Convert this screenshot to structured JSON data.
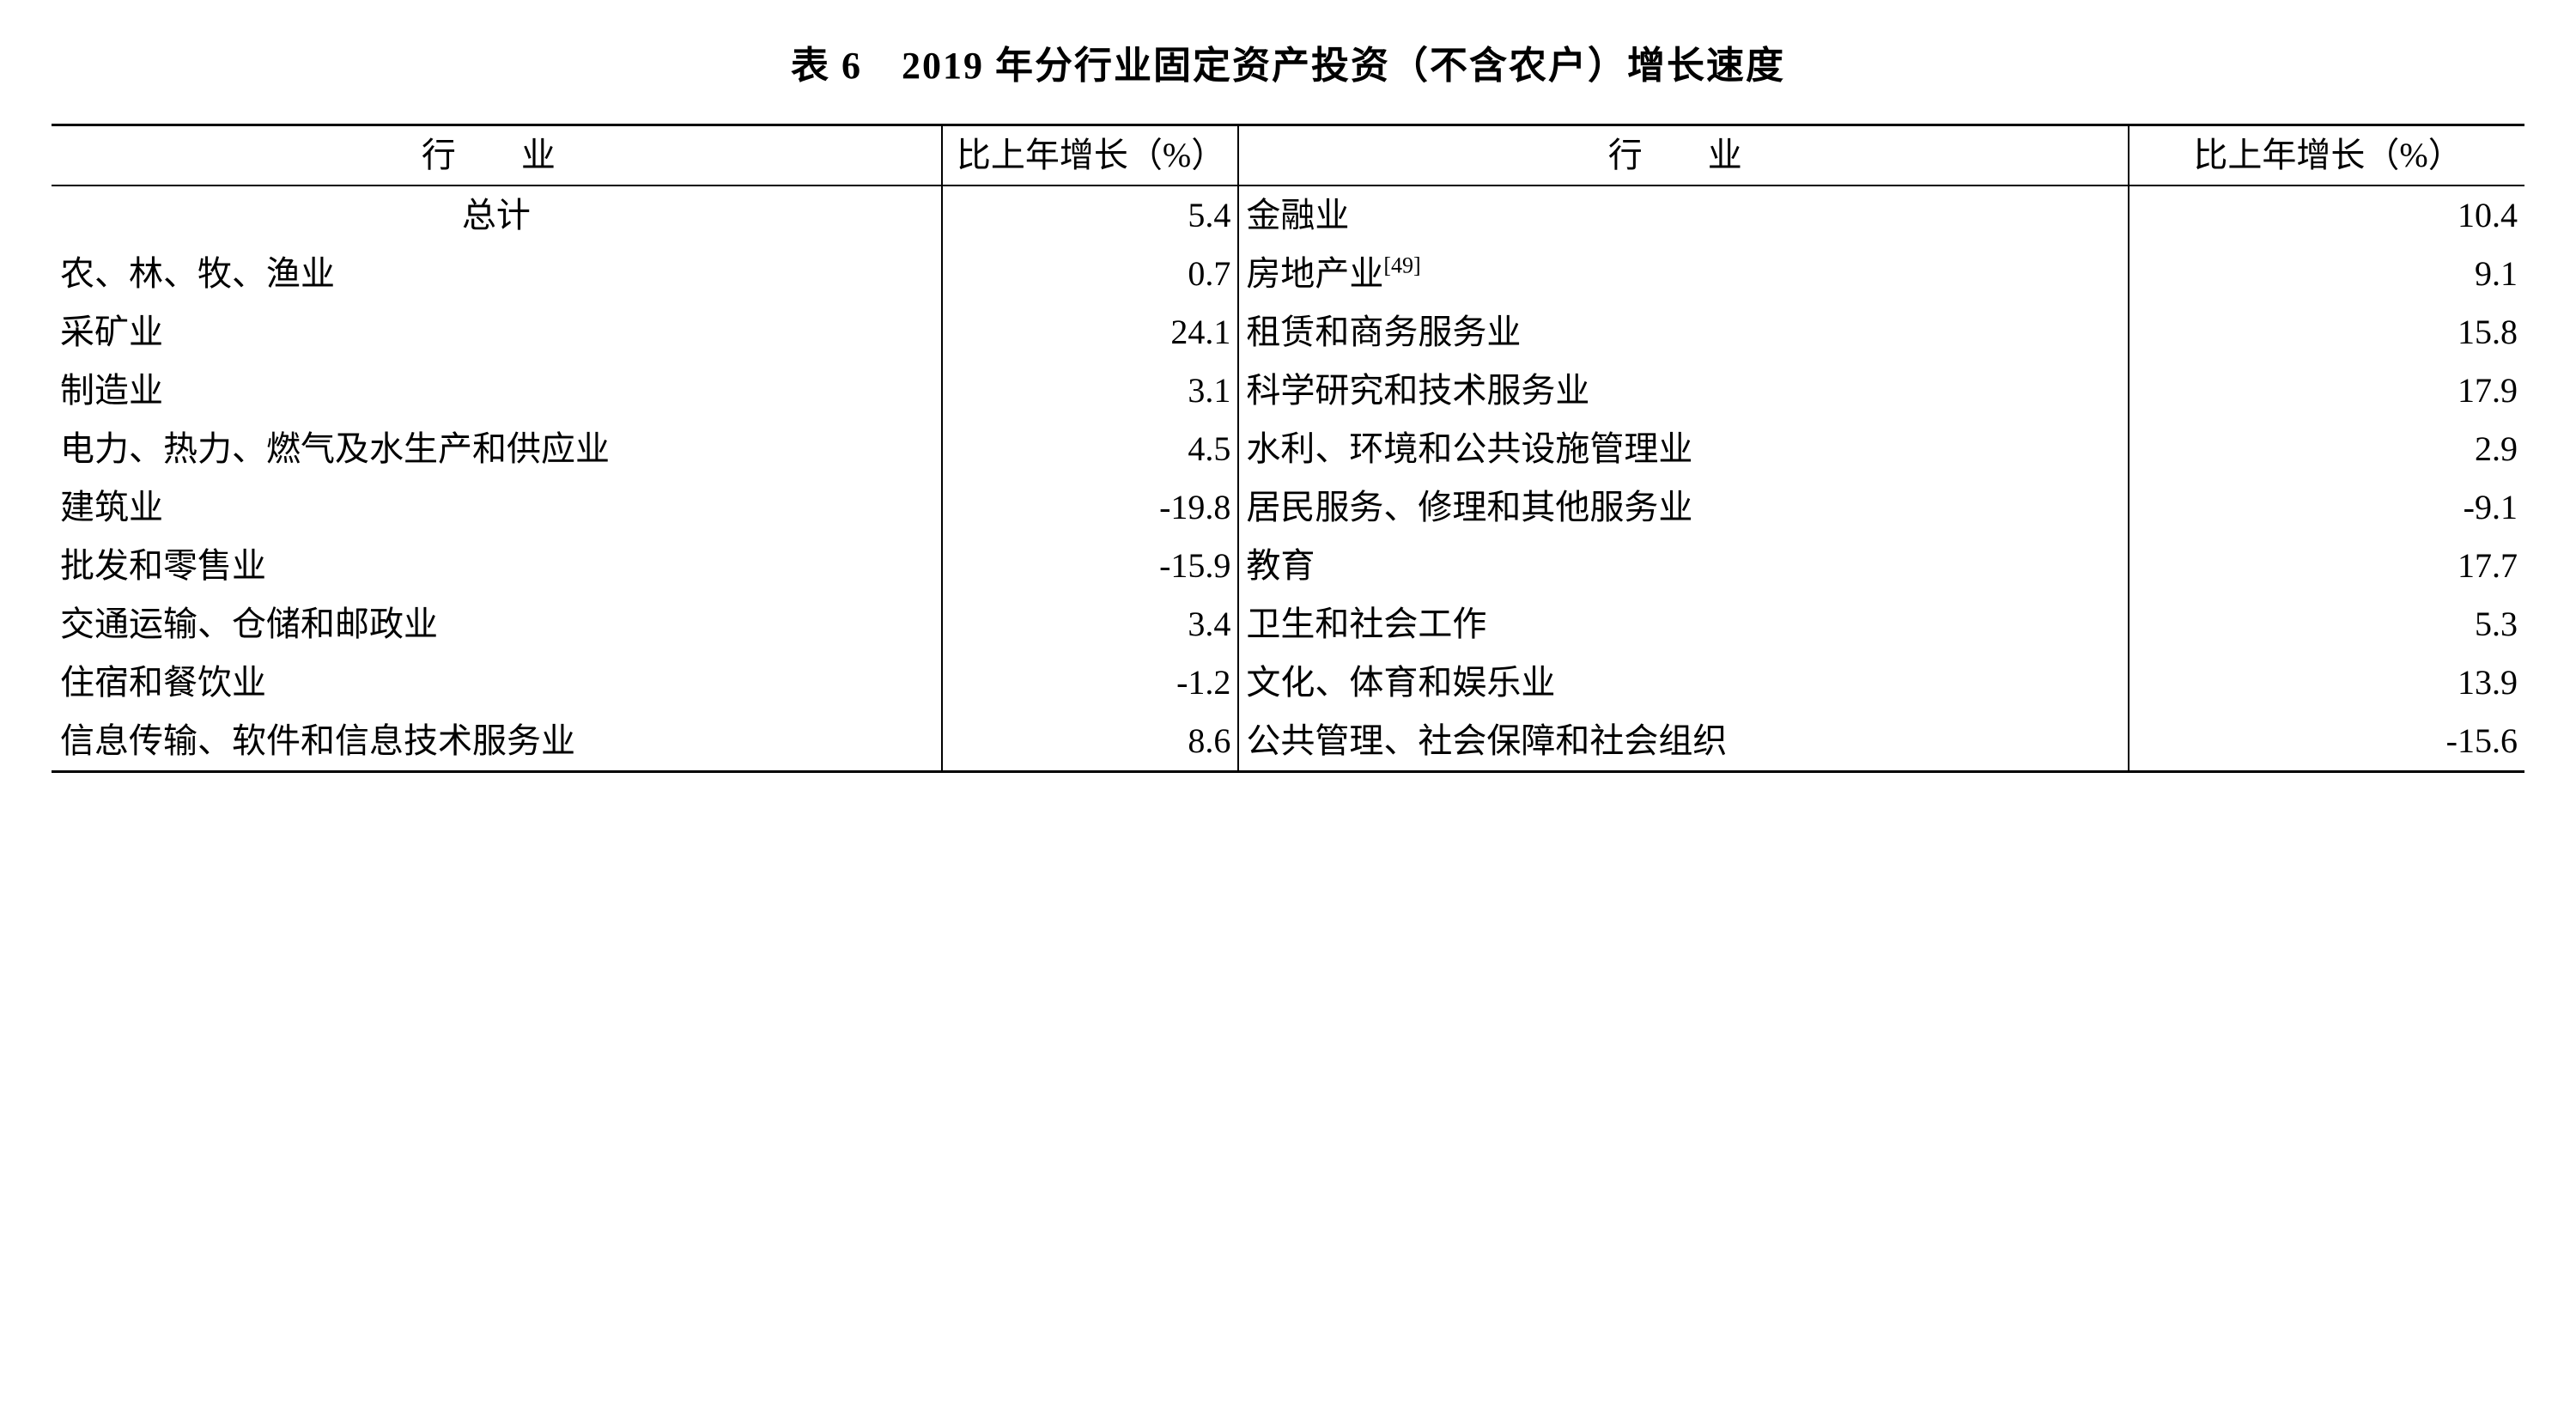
{
  "table": {
    "title": "表 6　2019 年分行业固定资产投资（不含农户）增长速度",
    "title_fontsize": 44,
    "body_fontsize": 40,
    "background_color": "#ffffff",
    "text_color": "#000000",
    "border_color": "#000000",
    "border_top_bottom_width": 3,
    "border_inner_width": 2,
    "column_widths_percent": [
      36,
      12,
      36,
      16
    ],
    "headers": {
      "industry_left": "行　业",
      "growth_left": "比上年增长（%）",
      "industry_right": "行　业",
      "growth_right": "比上年增长（%）"
    },
    "rows": [
      {
        "left_industry": "总计",
        "left_centered": true,
        "left_value": "5.4",
        "right_industry": "金融业",
        "right_value": "10.4"
      },
      {
        "left_industry": "农、林、牧、渔业",
        "left_centered": false,
        "left_value": "0.7",
        "right_industry": "房地产业",
        "right_sup": "[49]",
        "right_value": "9.1"
      },
      {
        "left_industry": "采矿业",
        "left_centered": false,
        "left_value": "24.1",
        "right_industry": "租赁和商务服务业",
        "right_value": "15.8"
      },
      {
        "left_industry": "制造业",
        "left_centered": false,
        "left_value": "3.1",
        "right_industry": "科学研究和技术服务业",
        "right_value": "17.9"
      },
      {
        "left_industry": "电力、热力、燃气及水生产和供应业",
        "left_centered": false,
        "left_value": "4.5",
        "right_industry": "水利、环境和公共设施管理业",
        "right_value": "2.9"
      },
      {
        "left_industry": "建筑业",
        "left_centered": false,
        "left_value": "-19.8",
        "right_industry": "居民服务、修理和其他服务业",
        "right_value": "-9.1"
      },
      {
        "left_industry": "批发和零售业",
        "left_centered": false,
        "left_value": "-15.9",
        "right_industry": "教育",
        "right_value": "17.7"
      },
      {
        "left_industry": "交通运输、仓储和邮政业",
        "left_centered": false,
        "left_value": "3.4",
        "right_industry": "卫生和社会工作",
        "right_value": "5.3"
      },
      {
        "left_industry": "住宿和餐饮业",
        "left_centered": false,
        "left_value": "-1.2",
        "right_industry": "文化、体育和娱乐业",
        "right_value": "13.9"
      },
      {
        "left_industry": "信息传输、软件和信息技术服务业",
        "left_centered": false,
        "left_value": "8.6",
        "right_industry": "公共管理、社会保障和社会组织",
        "right_value": "-15.6"
      }
    ]
  }
}
